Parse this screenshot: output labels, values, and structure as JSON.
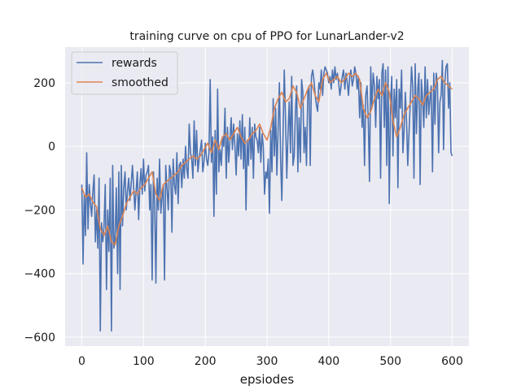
{
  "chart_data": {
    "type": "line",
    "title": "training curve on cpu of PPO for LunarLander-v2",
    "xlabel": "epsiodes",
    "ylabel": "",
    "xlim": [
      -27,
      627
    ],
    "ylim": [
      -628,
      312
    ],
    "xticks": [
      0,
      100,
      200,
      300,
      400,
      500,
      600
    ],
    "yticks": [
      -600,
      -400,
      -200,
      0,
      200
    ],
    "xtick_labels": [
      "0",
      "100",
      "200",
      "300",
      "400",
      "500",
      "600"
    ],
    "ytick_labels": [
      "−600",
      "−400",
      "−200",
      "0",
      "200"
    ],
    "grid": true,
    "legend_position": "top-left",
    "colors": {
      "background": "#eaeaf2",
      "grid": "#ffffff",
      "rewards": "#4c72b0",
      "smoothed": "#dd8452"
    },
    "series": [
      {
        "name": "rewards",
        "x": [
          0,
          2,
          4,
          6,
          8,
          10,
          12,
          14,
          16,
          18,
          20,
          22,
          24,
          26,
          28,
          30,
          32,
          34,
          36,
          38,
          40,
          42,
          44,
          46,
          48,
          50,
          52,
          54,
          56,
          58,
          60,
          62,
          64,
          66,
          68,
          70,
          72,
          74,
          76,
          78,
          80,
          82,
          84,
          86,
          88,
          90,
          92,
          94,
          96,
          98,
          100,
          102,
          104,
          106,
          108,
          110,
          112,
          114,
          116,
          118,
          120,
          122,
          124,
          126,
          128,
          130,
          132,
          134,
          136,
          138,
          140,
          142,
          144,
          146,
          148,
          150,
          152,
          154,
          156,
          158,
          160,
          162,
          164,
          166,
          168,
          170,
          172,
          174,
          176,
          178,
          180,
          182,
          184,
          186,
          188,
          190,
          192,
          194,
          196,
          198,
          200,
          202,
          204,
          206,
          208,
          210,
          212,
          214,
          216,
          218,
          220,
          222,
          224,
          226,
          228,
          230,
          232,
          234,
          236,
          238,
          240,
          242,
          244,
          246,
          248,
          250,
          252,
          254,
          256,
          258,
          260,
          262,
          264,
          266,
          268,
          270,
          272,
          274,
          276,
          278,
          280,
          282,
          284,
          286,
          288,
          290,
          292,
          294,
          296,
          298,
          300,
          302,
          304,
          306,
          308,
          310,
          312,
          314,
          316,
          318,
          320,
          322,
          324,
          326,
          328,
          330,
          332,
          334,
          336,
          338,
          340,
          342,
          344,
          346,
          348,
          350,
          352,
          354,
          356,
          358,
          360,
          362,
          364,
          366,
          368,
          370,
          372,
          374,
          376,
          378,
          380,
          382,
          384,
          386,
          388,
          390,
          392,
          394,
          396,
          398,
          400,
          402,
          404,
          406,
          408,
          410,
          412,
          414,
          416,
          418,
          420,
          422,
          424,
          426,
          428,
          430,
          432,
          434,
          436,
          438,
          440,
          442,
          444,
          446,
          448,
          450,
          452,
          454,
          456,
          458,
          460,
          462,
          464,
          466,
          468,
          470,
          472,
          474,
          476,
          478,
          480,
          482,
          484,
          486,
          488,
          490,
          492,
          494,
          496,
          498,
          500,
          502,
          504,
          506,
          508,
          510,
          512,
          514,
          516,
          518,
          520,
          522,
          524,
          526,
          528,
          530,
          532,
          534,
          536,
          538,
          540,
          542,
          544,
          546,
          548,
          550,
          552,
          554,
          556,
          558,
          560,
          562,
          564,
          566,
          568,
          570,
          572,
          574,
          576,
          578,
          580,
          582,
          584,
          586,
          588,
          590,
          592,
          594,
          596,
          598,
          600
        ],
        "values": [
          -120,
          -370,
          -150,
          -280,
          -20,
          -260,
          -120,
          -180,
          -220,
          -140,
          -90,
          -300,
          -200,
          -320,
          -100,
          -580,
          -240,
          -300,
          -250,
          -120,
          -450,
          -200,
          -330,
          -100,
          -580,
          -60,
          -320,
          -290,
          -130,
          -400,
          -80,
          -450,
          -60,
          -250,
          -130,
          -80,
          -200,
          -140,
          -100,
          -170,
          -120,
          -60,
          -130,
          -200,
          -140,
          -80,
          -230,
          -120,
          -70,
          -150,
          -40,
          -140,
          -90,
          -80,
          -60,
          -200,
          -120,
          -420,
          -80,
          -180,
          -430,
          -100,
          -200,
          -40,
          -210,
          -160,
          -120,
          -420,
          -60,
          -130,
          -200,
          -60,
          -80,
          -270,
          -40,
          -120,
          -150,
          -20,
          -180,
          -60,
          -50,
          -130,
          -40,
          -100,
          0,
          -70,
          -100,
          70,
          -20,
          -40,
          -100,
          80,
          -60,
          50,
          -80,
          -40,
          -10,
          20,
          -80,
          -50,
          10,
          -40,
          -60,
          -20,
          210,
          -50,
          30,
          -220,
          50,
          -150,
          180,
          -80,
          -10,
          -60,
          30,
          0,
          120,
          -100,
          60,
          -50,
          20,
          90,
          -10,
          70,
          0,
          -90,
          40,
          -30,
          80,
          -40,
          100,
          -70,
          60,
          -200,
          20,
          -60,
          90,
          -40,
          60,
          -100,
          70,
          30,
          20,
          -20,
          60,
          -50,
          40,
          0,
          -150,
          -80,
          -100,
          -40,
          -210,
          50,
          -80,
          150,
          -30,
          120,
          -90,
          60,
          200,
          -40,
          -170,
          40,
          240,
          80,
          -100,
          40,
          140,
          -20,
          220,
          -60,
          -30,
          110,
          190,
          -80,
          90,
          -50,
          210,
          170,
          -20,
          60,
          -60,
          170,
          190,
          -60,
          220,
          240,
          210,
          160,
          130,
          110,
          200,
          180,
          240,
          160,
          230,
          250,
          240,
          230,
          200,
          220,
          180,
          240,
          200,
          250,
          210,
          230,
          200,
          160,
          190,
          220,
          240,
          180,
          230,
          200,
          160,
          220,
          240,
          190,
          210,
          250,
          230,
          180,
          220,
          90,
          200,
          60,
          130,
          -60,
          160,
          190,
          80,
          -110,
          250,
          120,
          230,
          190,
          60,
          220,
          150,
          210,
          -100,
          230,
          260,
          60,
          240,
          -60,
          250,
          -180,
          130,
          220,
          -30,
          180,
          90,
          210,
          -130,
          180,
          120,
          240,
          -20,
          50,
          170,
          80,
          -60,
          40,
          140,
          250,
          190,
          -100,
          260,
          40,
          180,
          230,
          -120,
          210,
          150,
          60,
          250,
          90,
          210,
          100,
          150,
          190,
          -80,
          230,
          70,
          230,
          200,
          -20,
          140,
          160,
          270,
          -10,
          200,
          250,
          260,
          120,
          200,
          -20,
          -30
        ]
      },
      {
        "name": "smoothed",
        "x": [
          0,
          6,
          12,
          18,
          24,
          30,
          36,
          42,
          48,
          54,
          60,
          66,
          72,
          78,
          84,
          90,
          96,
          102,
          108,
          114,
          120,
          126,
          132,
          138,
          144,
          150,
          156,
          162,
          168,
          174,
          180,
          186,
          192,
          198,
          204,
          210,
          216,
          222,
          228,
          234,
          240,
          246,
          252,
          258,
          264,
          270,
          276,
          282,
          288,
          294,
          300,
          306,
          312,
          318,
          324,
          330,
          336,
          342,
          348,
          354,
          360,
          366,
          372,
          378,
          384,
          390,
          396,
          402,
          408,
          414,
          420,
          426,
          432,
          438,
          444,
          450,
          456,
          462,
          468,
          474,
          480,
          486,
          492,
          498,
          504,
          510,
          516,
          522,
          528,
          534,
          540,
          546,
          552,
          558,
          564,
          570,
          576,
          582,
          588,
          594,
          600
        ],
        "values": [
          -130,
          -160,
          -150,
          -175,
          -190,
          -260,
          -280,
          -250,
          -300,
          -310,
          -250,
          -220,
          -180,
          -160,
          -140,
          -150,
          -130,
          -120,
          -100,
          -80,
          -150,
          -170,
          -120,
          -110,
          -100,
          -90,
          -80,
          -60,
          -50,
          -40,
          -30,
          -40,
          -30,
          -10,
          10,
          -20,
          20,
          -10,
          30,
          40,
          20,
          40,
          60,
          30,
          10,
          20,
          40,
          50,
          70,
          40,
          20,
          60,
          120,
          150,
          170,
          140,
          150,
          190,
          170,
          120,
          150,
          180,
          200,
          160,
          140,
          210,
          230,
          200,
          210,
          220,
          200,
          210,
          230,
          220,
          230,
          210,
          120,
          90,
          110,
          150,
          180,
          160,
          200,
          170,
          80,
          30,
          60,
          100,
          120,
          140,
          160,
          150,
          130,
          160,
          170,
          180,
          210,
          220,
          200,
          190,
          180
        ]
      }
    ]
  }
}
